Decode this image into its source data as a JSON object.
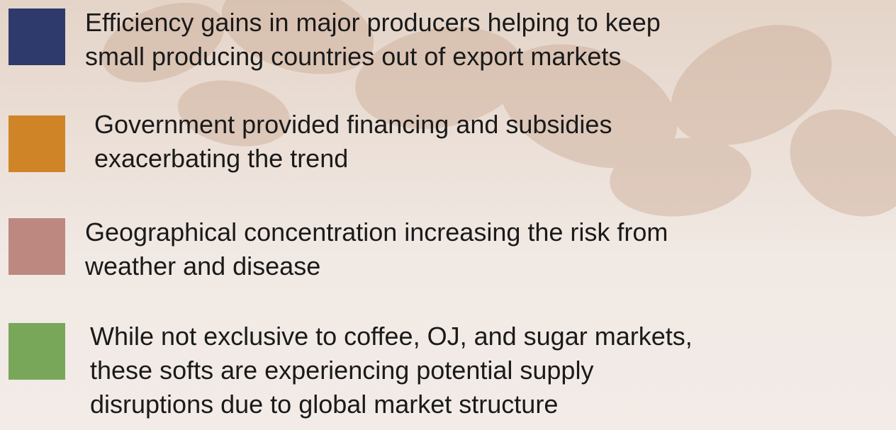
{
  "items": [
    {
      "lines": [
        "Efficiency gains in major producers helping to keep",
        "small producing countries out of export markets"
      ]
    },
    {
      "lines": [
        "Government provided financing and subsidies",
        "exacerbating the trend"
      ]
    },
    {
      "lines": [
        "Geographical concentration increasing the risk from",
        "weather and disease"
      ]
    },
    {
      "lines": [
        "While not exclusive to coffee, OJ, and sugar markets,",
        "these softs are experiencing potential supply",
        "disruptions due to global market structure"
      ]
    }
  ]
}
